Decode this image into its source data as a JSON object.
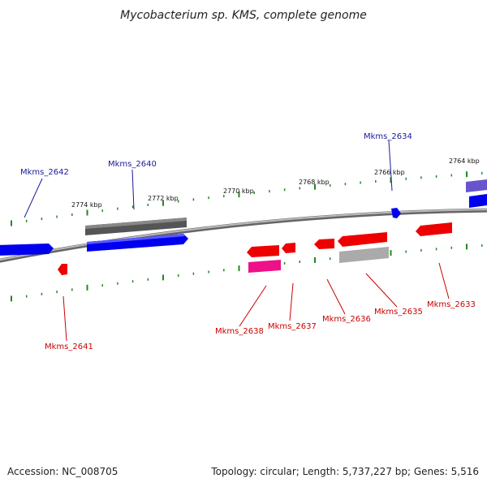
{
  "title": "Mycobacterium sp. KMS, complete genome",
  "footer": {
    "accession": "Accession: NC_008705",
    "summary": "Topology: circular; Length: 5,737,227 bp; Genes: 5,516"
  },
  "scale_labels": [
    "2774 kbp",
    "2772 kbp",
    "2770 kbp",
    "2768 kbp",
    "2766 kbp",
    "2764 kbp"
  ],
  "colors": {
    "forward_gene": "#0000ee",
    "reverse_gene": "#ee0000",
    "forward_label": "#1a1a99",
    "reverse_label": "#cc0000",
    "pseudo_gene": "#555555",
    "rna_gene": "#ee1188",
    "light_gene": "#aaaaaa",
    "violet_gene": "#6655cc",
    "tick": "#228822",
    "backbone": "#888888"
  },
  "gene_labels": [
    {
      "id": "Mkms_2642",
      "strand": "forward"
    },
    {
      "id": "Mkms_2640",
      "strand": "forward"
    },
    {
      "id": "Mkms_2634",
      "strand": "forward"
    },
    {
      "id": "Mkms_2641",
      "strand": "reverse"
    },
    {
      "id": "Mkms_2638",
      "strand": "reverse"
    },
    {
      "id": "Mkms_2637",
      "strand": "reverse"
    },
    {
      "id": "Mkms_2636",
      "strand": "reverse"
    },
    {
      "id": "Mkms_2635",
      "strand": "reverse"
    },
    {
      "id": "Mkms_2633",
      "strand": "reverse"
    }
  ]
}
